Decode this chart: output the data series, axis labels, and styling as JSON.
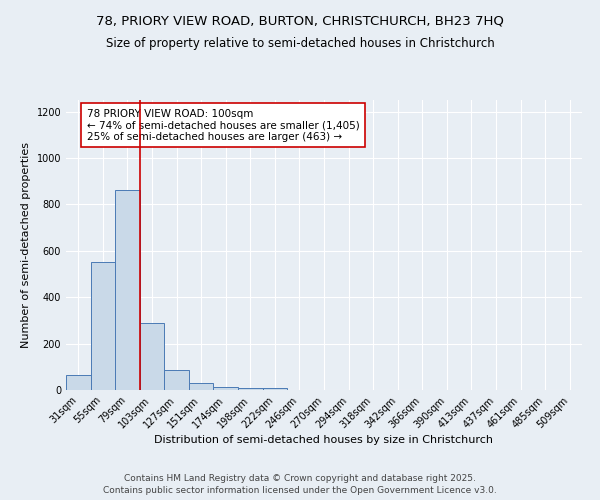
{
  "title_line1": "78, PRIORY VIEW ROAD, BURTON, CHRISTCHURCH, BH23 7HQ",
  "title_line2": "Size of property relative to semi-detached houses in Christchurch",
  "xlabel": "Distribution of semi-detached houses by size in Christchurch",
  "ylabel": "Number of semi-detached properties",
  "categories": [
    "31sqm",
    "55sqm",
    "79sqm",
    "103sqm",
    "127sqm",
    "151sqm",
    "174sqm",
    "198sqm",
    "222sqm",
    "246sqm",
    "270sqm",
    "294sqm",
    "318sqm",
    "342sqm",
    "366sqm",
    "390sqm",
    "413sqm",
    "437sqm",
    "461sqm",
    "485sqm",
    "509sqm"
  ],
  "values": [
    65,
    550,
    860,
    290,
    85,
    30,
    15,
    10,
    8,
    2,
    0,
    0,
    0,
    0,
    0,
    0,
    0,
    0,
    0,
    0,
    0
  ],
  "bar_color": "#c9d9e8",
  "bar_edge_color": "#4a7ab5",
  "highlight_line_color": "#cc0000",
  "annotation_title": "78 PRIORY VIEW ROAD: 100sqm",
  "annotation_line1": "← 74% of semi-detached houses are smaller (1,405)",
  "annotation_line2": "25% of semi-detached houses are larger (463) →",
  "annotation_box_color": "#ffffff",
  "annotation_box_edge_color": "#cc0000",
  "ylim": [
    0,
    1250
  ],
  "yticks": [
    0,
    200,
    400,
    600,
    800,
    1000,
    1200
  ],
  "background_color": "#e8eef4",
  "plot_bg_color": "#e8eef4",
  "footer_line1": "Contains HM Land Registry data © Crown copyright and database right 2025.",
  "footer_line2": "Contains public sector information licensed under the Open Government Licence v3.0.",
  "title_fontsize": 9.5,
  "subtitle_fontsize": 8.5,
  "axis_label_fontsize": 8,
  "tick_fontsize": 7,
  "annotation_fontsize": 7.5,
  "footer_fontsize": 6.5
}
